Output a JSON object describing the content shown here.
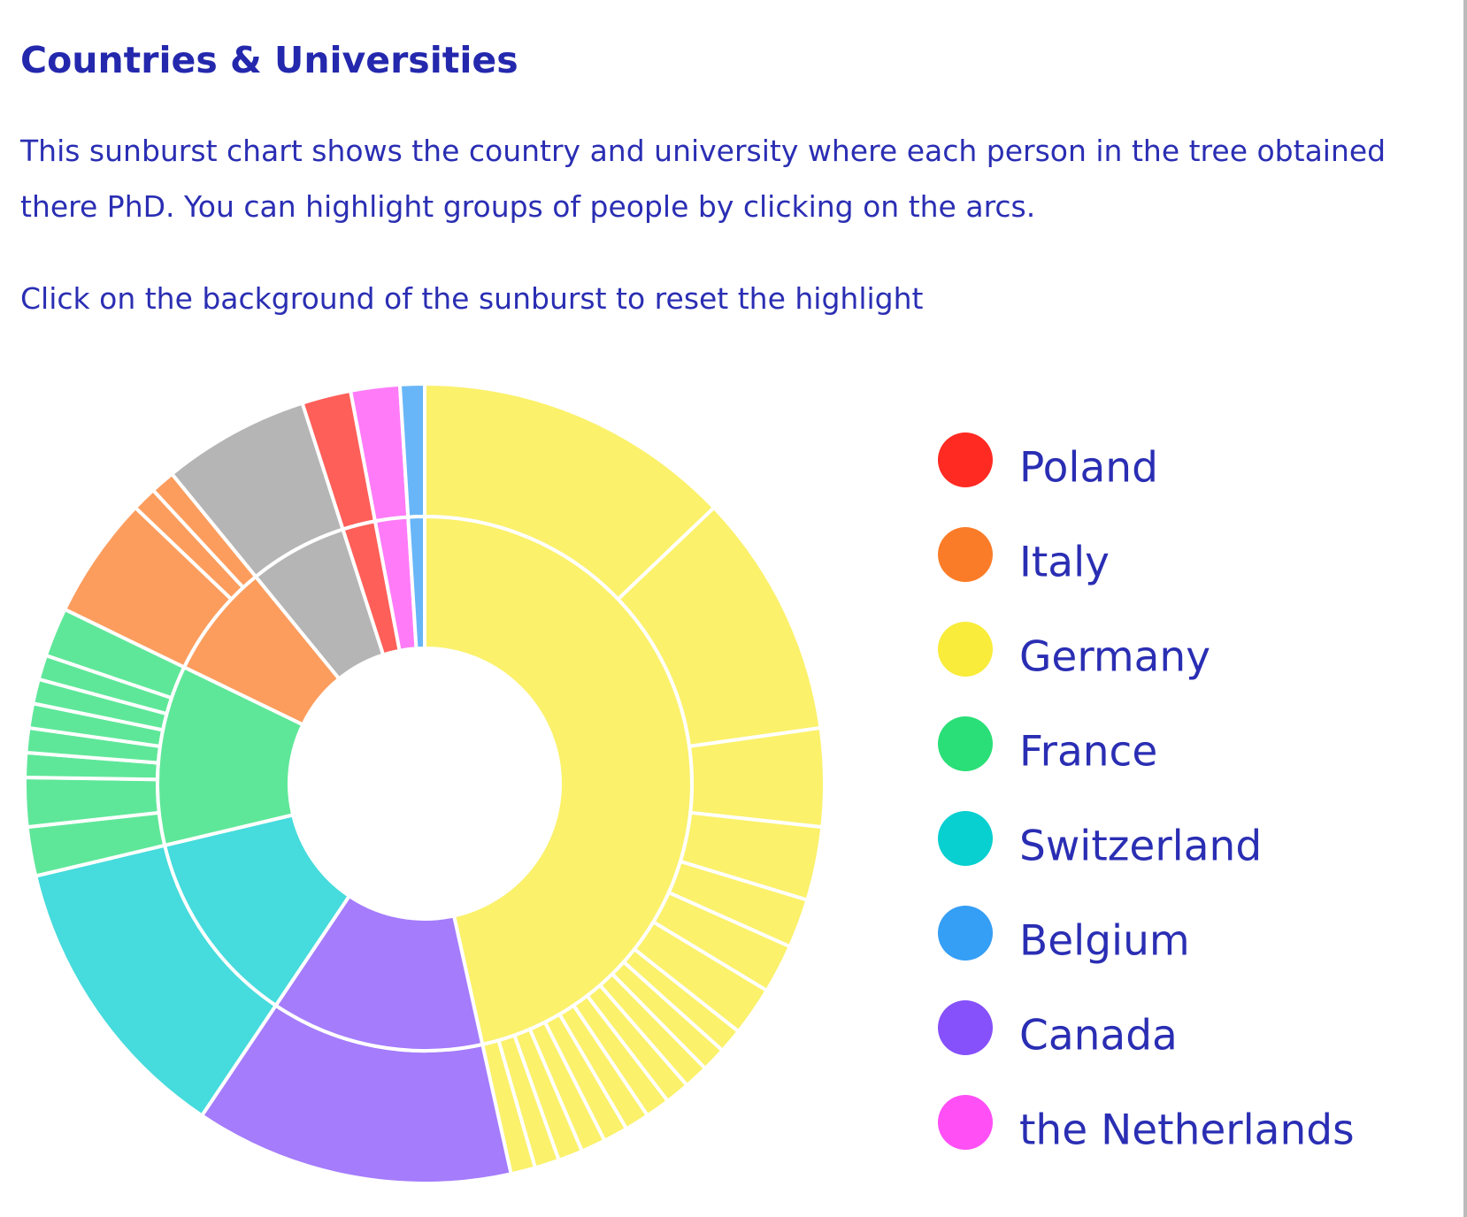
{
  "page": {
    "heading": "Countries & Universities",
    "paragraphs": [
      "This sunburst chart shows the country and university where each person in the tree obtained there PhD. You can highlight groups of people by clicking on the arcs.",
      "Click on the background of the sunburst to reset the highlight"
    ]
  },
  "chart_data": {
    "type": "sunburst",
    "series": [
      {
        "color": "#f9ec3a",
        "values": [
          13,
          10,
          4,
          3,
          2,
          2,
          2,
          1,
          1,
          1,
          1,
          1,
          1,
          1,
          1,
          1,
          1,
          1
        ]
      },
      {
        "color": "#8650fb",
        "values": [
          13
        ]
      },
      {
        "color": "#08cfd0",
        "values": [
          12
        ]
      },
      {
        "color": "#2adf77",
        "values": [
          2,
          2,
          1,
          1,
          1,
          1,
          1,
          2
        ]
      },
      {
        "color": "#fb7c28",
        "values": [
          5,
          1,
          1
        ]
      },
      {
        "color": "#9c9c9c",
        "values": [
          6
        ]
      },
      {
        "color": "#ff2a22",
        "values": [
          2
        ]
      },
      {
        "color": "#ff4ff5",
        "values": [
          2
        ]
      },
      {
        "color": "#359ef5",
        "values": [
          1
        ]
      }
    ],
    "legend": [
      {
        "name": "Poland",
        "color": "#ff2a22"
      },
      {
        "name": "Italy",
        "color": "#fb7c28"
      },
      {
        "name": "Germany",
        "color": "#f9ec3a"
      },
      {
        "name": "France",
        "color": "#2adf77"
      },
      {
        "name": "Switzerland",
        "color": "#08cfd0"
      },
      {
        "name": "Belgium",
        "color": "#359ef5"
      },
      {
        "name": "Canada",
        "color": "#8650fb"
      },
      {
        "name": "the Netherlands",
        "color": "#ff4ff5"
      }
    ]
  }
}
